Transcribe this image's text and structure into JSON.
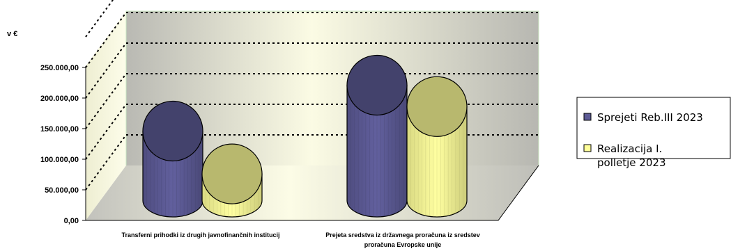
{
  "chart_data": {
    "type": "bar",
    "unit_label": "v €",
    "categories": [
      [
        "Transferni prihodki iz drugih javnofinančnih institucij"
      ],
      [
        "Prejeta sredstva iz državnega proračuna iz sredstev",
        "proračuna Evropske unije"
      ]
    ],
    "series": [
      {
        "name": "Sprejeti Reb.III 2023",
        "values": [
          190000,
          265000
        ],
        "color": "#5d5b96"
      },
      {
        "name": "Realizacija I. polletje 2023",
        "values": [
          120000,
          230000
        ],
        "color": "#ffff99"
      }
    ],
    "legend_lines": [
      [
        "Sprejeti Reb.III 2023"
      ],
      [
        "Realizacija I.",
        "polletje 2023"
      ]
    ],
    "ylim": [
      0,
      300000
    ],
    "yticks": [
      "0,00",
      "50.000,00",
      "100.000,00",
      "150.000,00",
      "200.000,00",
      "250.000,00"
    ],
    "grid": true,
    "legend_position": "right"
  }
}
